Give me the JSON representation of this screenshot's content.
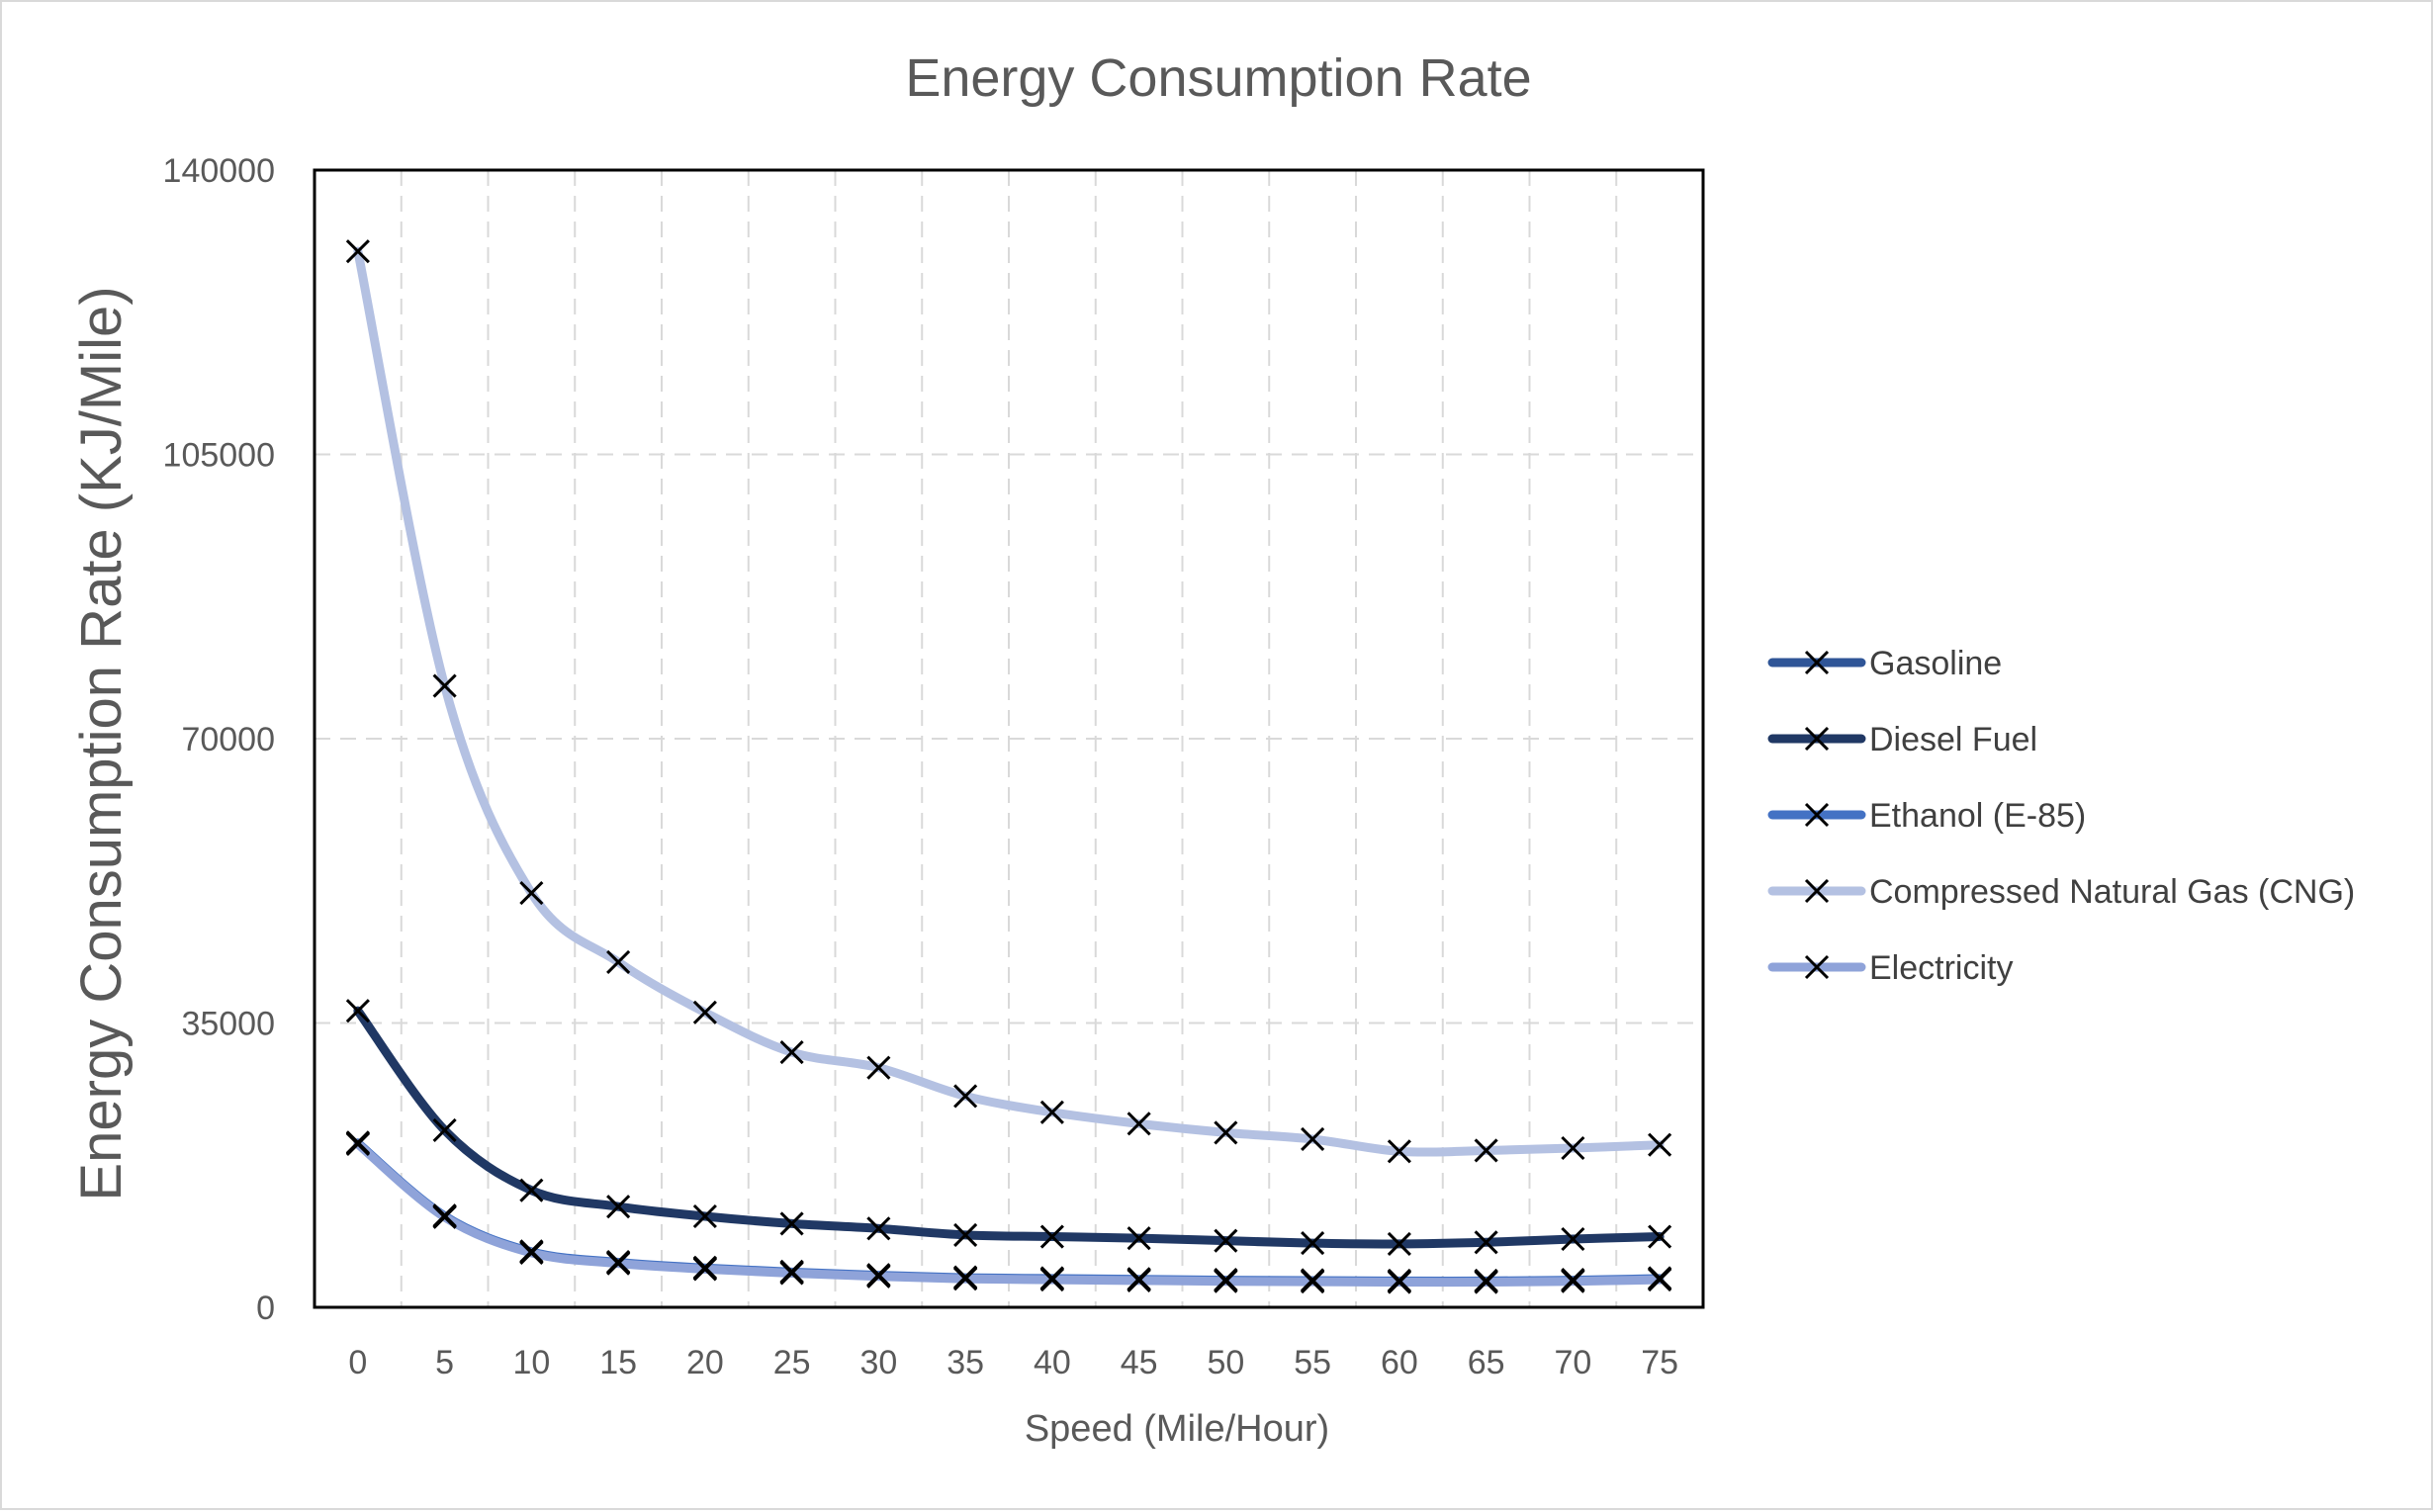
{
  "chart_data": {
    "type": "line",
    "title": "Energy Consumption Rate",
    "xlabel": "Speed (Mile/Hour)",
    "ylabel": "Energy Consumption Rate  (KJ/Mile)",
    "x": [
      0,
      5,
      10,
      15,
      20,
      25,
      30,
      35,
      40,
      45,
      50,
      55,
      60,
      65,
      70,
      75
    ],
    "ylim": [
      0,
      140000
    ],
    "yticks": [
      0,
      35000,
      70000,
      105000,
      140000
    ],
    "grid": true,
    "legend_position": "right",
    "marker": "x",
    "series": [
      {
        "name": "Gasoline",
        "color": "#2f5597",
        "values": [
          20200,
          11200,
          6800,
          5500,
          4800,
          4300,
          3900,
          3600,
          3500,
          3400,
          3300,
          3250,
          3200,
          3200,
          3300,
          3500
        ]
      },
      {
        "name": "Diesel Fuel",
        "color": "#203864",
        "values": [
          36500,
          21800,
          14400,
          12400,
          11200,
          10300,
          9700,
          8900,
          8700,
          8500,
          8200,
          7900,
          7800,
          8000,
          8400,
          8700
        ]
      },
      {
        "name": "Ethanol (E-85)",
        "color": "#4472c4",
        "values": [
          20300,
          11300,
          6900,
          5600,
          4900,
          4400,
          4000,
          3700,
          3600,
          3500,
          3400,
          3350,
          3300,
          3300,
          3400,
          3600
        ]
      },
      {
        "name": "Compressed Natural Gas (CNG)",
        "color": "#b4c1e2",
        "values": [
          130000,
          76500,
          51000,
          42500,
          36300,
          31400,
          29500,
          26000,
          24000,
          22600,
          21500,
          20700,
          19200,
          19300,
          19600,
          20000
        ]
      },
      {
        "name": "Electricity",
        "color": "#8fa3d9",
        "values": [
          20100,
          11100,
          6700,
          5400,
          4700,
          4200,
          3800,
          3500,
          3400,
          3300,
          3200,
          3150,
          3100,
          3100,
          3200,
          3400
        ]
      }
    ]
  }
}
